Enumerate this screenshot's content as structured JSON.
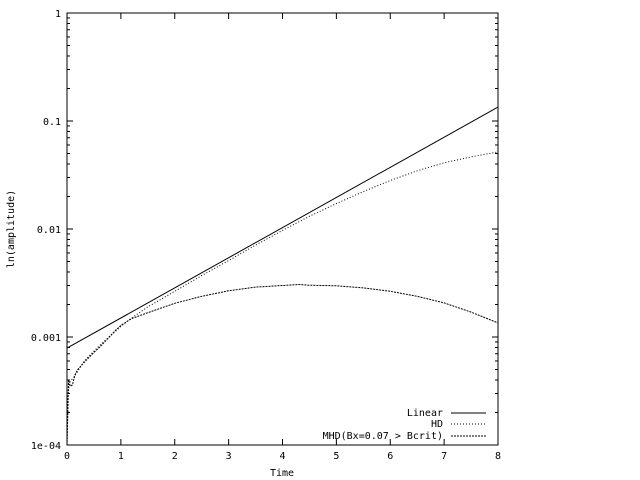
{
  "chart_data": {
    "type": "line",
    "title": "",
    "xlabel": "Time",
    "ylabel": "ln(amplitude)",
    "xlim": [
      0,
      8
    ],
    "ylim": [
      0.0001,
      1
    ],
    "yscale": "log",
    "grid": false,
    "legend_position": "bottom-right",
    "x_ticks": [
      0,
      1,
      2,
      3,
      4,
      5,
      6,
      7,
      8
    ],
    "x_tick_labels": [
      "0",
      "1",
      "2",
      "3",
      "4",
      "5",
      "6",
      "7",
      "8"
    ],
    "y_ticks": [
      0.0001,
      0.001,
      0.01,
      0.1,
      1
    ],
    "y_tick_labels": [
      "1e-04",
      "0.001",
      "0.01",
      "0.1",
      "1"
    ],
    "series": [
      {
        "name": "Linear",
        "style": "solid",
        "x": [
          0,
          8
        ],
        "y": [
          0.00079,
          0.1345
        ]
      },
      {
        "name": "HD",
        "style": "dotted",
        "x": [
          0,
          0.02,
          0.05,
          0.08,
          0.12,
          0.2,
          0.3,
          0.4,
          0.5,
          0.6,
          0.7,
          0.8,
          0.9,
          1.0,
          1.2,
          1.5,
          2.0,
          2.5,
          3.0,
          3.5,
          4.0,
          4.5,
          5.0,
          5.5,
          6.0,
          6.5,
          7.0,
          7.5,
          8.0
        ],
        "y": [
          0.0001,
          0.0003,
          0.00038,
          0.0004,
          0.00042,
          0.00048,
          0.00058,
          0.00066,
          0.00074,
          0.00083,
          0.00092,
          0.00102,
          0.00113,
          0.00125,
          0.0015,
          0.0019,
          0.00265,
          0.0037,
          0.0051,
          0.0071,
          0.0097,
          0.0131,
          0.0172,
          0.0222,
          0.0281,
          0.0346,
          0.041,
          0.0465,
          0.0518
        ]
      },
      {
        "name": "MHD(Bx=0.07 > Bcrit)",
        "style": "dashed",
        "x": [
          0,
          0.03,
          0.06,
          0.1,
          0.15,
          0.2,
          0.3,
          0.4,
          0.5,
          0.6,
          0.7,
          0.8,
          0.9,
          1.0,
          1.2,
          1.5,
          2.0,
          2.5,
          3.0,
          3.5,
          4.0,
          4.3,
          4.5,
          5.0,
          5.5,
          6.0,
          6.5,
          7.0,
          7.5,
          8.0
        ],
        "y": [
          0.0001,
          0.0004,
          0.00035,
          0.00036,
          0.00045,
          0.0005,
          0.00057,
          0.00064,
          0.00072,
          0.0008,
          0.0009,
          0.00102,
          0.00115,
          0.00128,
          0.00148,
          0.00168,
          0.00205,
          0.00238,
          0.00268,
          0.0029,
          0.003,
          0.00306,
          0.00302,
          0.00298,
          0.00285,
          0.00265,
          0.00238,
          0.00207,
          0.0017,
          0.00135
        ]
      }
    ]
  }
}
